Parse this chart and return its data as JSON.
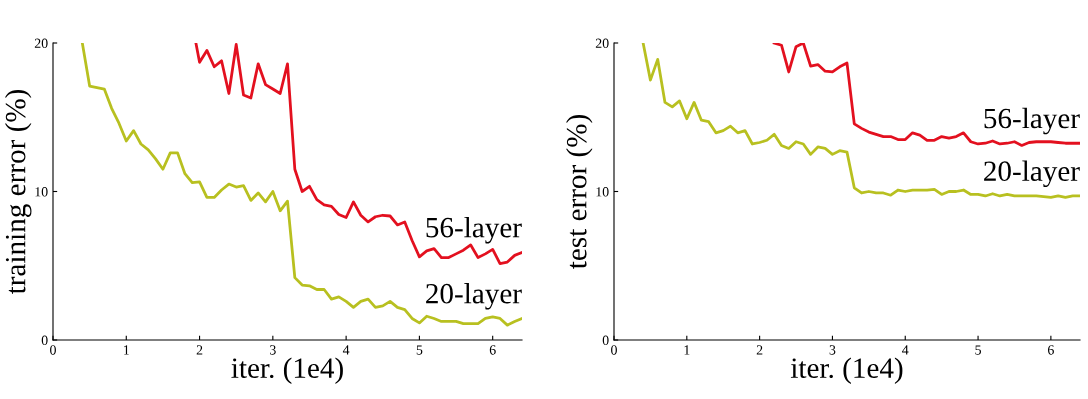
{
  "chart_data": [
    {
      "type": "line",
      "xlabel": "iter. (1e4)",
      "ylabel": "training error (%)",
      "xlim": [
        0,
        6.4
      ],
      "ylim": [
        0,
        20
      ],
      "xticks": [
        0,
        1,
        2,
        3,
        4,
        5,
        6
      ],
      "yticks": [
        0,
        10,
        20
      ],
      "grid": false,
      "legend": false,
      "series": [
        {
          "name": "56-layer",
          "color": "#e3101f",
          "x": [
            1.95,
            2.0,
            2.1,
            2.2,
            2.3,
            2.4,
            2.5,
            2.6,
            2.7,
            2.8,
            2.9,
            3.0,
            3.1,
            3.2,
            3.3,
            3.4,
            3.5,
            3.6,
            3.7,
            3.8,
            3.9,
            4.0,
            4.1,
            4.2,
            4.3,
            4.4,
            4.5,
            4.6,
            4.7,
            4.8,
            4.9,
            5.0,
            5.1,
            5.2,
            5.3,
            5.4,
            5.5,
            5.6,
            5.7,
            5.8,
            5.9,
            6.0,
            6.1,
            6.2,
            6.3,
            6.4
          ],
          "values": [
            20,
            18.7,
            19.5,
            18.4,
            18.8,
            16.6,
            19.9,
            16.5,
            16.3,
            18.6,
            17.2,
            16.9,
            16.6,
            18.6,
            11.5,
            10.0,
            10.35,
            9.45,
            9.1,
            9.0,
            8.45,
            8.25,
            9.3,
            8.4,
            7.95,
            8.3,
            8.4,
            8.35,
            7.75,
            7.95,
            6.7,
            5.6,
            6.0,
            6.15,
            5.55,
            5.55,
            5.8,
            6.05,
            6.4,
            5.55,
            5.8,
            6.1,
            5.15,
            5.25,
            5.7,
            5.9
          ]
        },
        {
          "name": "20-layer",
          "color": "#b8c020",
          "x": [
            0.4,
            0.5,
            0.7,
            0.8,
            0.9,
            1.0,
            1.1,
            1.2,
            1.3,
            1.4,
            1.5,
            1.6,
            1.7,
            1.8,
            1.9,
            2.0,
            2.1,
            2.2,
            2.3,
            2.4,
            2.5,
            2.6,
            2.7,
            2.8,
            2.9,
            3.0,
            3.1,
            3.2,
            3.3,
            3.4,
            3.5,
            3.6,
            3.7,
            3.8,
            3.9,
            4.0,
            4.1,
            4.2,
            4.3,
            4.4,
            4.5,
            4.6,
            4.7,
            4.8,
            4.9,
            5.0,
            5.1,
            5.2,
            5.3,
            5.4,
            5.5,
            5.6,
            5.7,
            5.8,
            5.9,
            6.0,
            6.1,
            6.2,
            6.3,
            6.4
          ],
          "values": [
            20,
            17.1,
            16.9,
            15.6,
            14.6,
            13.4,
            14.1,
            13.2,
            12.8,
            12.2,
            11.5,
            12.6,
            12.6,
            11.2,
            10.6,
            10.65,
            9.6,
            9.6,
            10.1,
            10.5,
            10.3,
            10.4,
            9.4,
            9.9,
            9.3,
            10.0,
            8.7,
            9.35,
            4.2,
            3.7,
            3.65,
            3.4,
            3.4,
            2.75,
            2.9,
            2.6,
            2.2,
            2.6,
            2.75,
            2.2,
            2.3,
            2.6,
            2.2,
            2.05,
            1.45,
            1.15,
            1.6,
            1.45,
            1.25,
            1.25,
            1.25,
            1.1,
            1.1,
            1.1,
            1.45,
            1.55,
            1.45,
            1.0,
            1.25,
            1.45
          ]
        }
      ]
    },
    {
      "type": "line",
      "xlabel": "iter. (1e4)",
      "ylabel": "test error (%)",
      "xlim": [
        0,
        6.4
      ],
      "ylim": [
        0,
        20
      ],
      "xticks": [
        0,
        1,
        2,
        3,
        4,
        5,
        6
      ],
      "yticks": [
        0,
        10,
        20
      ],
      "grid": false,
      "legend": false,
      "series": [
        {
          "name": "56-layer",
          "color": "#e3101f",
          "x": [
            2.2,
            2.3,
            2.4,
            2.5,
            2.6,
            2.7,
            2.8,
            2.9,
            3.0,
            3.1,
            3.2,
            3.3,
            3.4,
            3.5,
            3.6,
            3.7,
            3.8,
            3.9,
            4.0,
            4.1,
            4.2,
            4.3,
            4.4,
            4.5,
            4.6,
            4.7,
            4.8,
            4.9,
            5.0,
            5.1,
            5.2,
            5.3,
            5.4,
            5.5,
            5.6,
            5.7,
            5.8,
            5.9,
            6.0,
            6.1,
            6.2,
            6.3,
            6.4
          ],
          "values": [
            20,
            19.85,
            18.05,
            19.75,
            20,
            18.45,
            18.55,
            18.1,
            18.05,
            18.4,
            18.65,
            14.55,
            14.25,
            14.0,
            13.85,
            13.7,
            13.7,
            13.5,
            13.5,
            13.95,
            13.8,
            13.45,
            13.45,
            13.7,
            13.6,
            13.7,
            13.95,
            13.35,
            13.2,
            13.25,
            13.4,
            13.2,
            13.25,
            13.35,
            13.1,
            13.3,
            13.35,
            13.35,
            13.35,
            13.3,
            13.25,
            13.25,
            13.25
          ]
        },
        {
          "name": "20-layer",
          "color": "#b8c020",
          "x": [
            0.4,
            0.5,
            0.6,
            0.7,
            0.8,
            0.9,
            1.0,
            1.1,
            1.2,
            1.3,
            1.4,
            1.5,
            1.6,
            1.7,
            1.8,
            1.9,
            2.0,
            2.1,
            2.2,
            2.3,
            2.4,
            2.5,
            2.6,
            2.7,
            2.8,
            2.9,
            3.0,
            3.1,
            3.2,
            3.3,
            3.4,
            3.5,
            3.6,
            3.7,
            3.8,
            3.9,
            4.0,
            4.1,
            4.2,
            4.3,
            4.4,
            4.5,
            4.6,
            4.7,
            4.8,
            4.9,
            5.0,
            5.1,
            5.2,
            5.3,
            5.4,
            5.5,
            5.6,
            5.7,
            5.8,
            5.9,
            6.0,
            6.1,
            6.2,
            6.3,
            6.4
          ],
          "values": [
            20,
            17.5,
            18.9,
            16.0,
            15.7,
            16.1,
            14.9,
            16.0,
            14.8,
            14.7,
            13.95,
            14.1,
            14.4,
            13.95,
            14.1,
            13.2,
            13.3,
            13.45,
            13.85,
            13.1,
            12.9,
            13.35,
            13.2,
            12.5,
            13.0,
            12.9,
            12.5,
            12.75,
            12.65,
            10.25,
            9.9,
            10.0,
            9.9,
            9.9,
            9.75,
            10.1,
            10.0,
            10.1,
            10.1,
            10.1,
            10.15,
            9.8,
            10.0,
            10.0,
            10.1,
            9.8,
            9.8,
            9.7,
            9.85,
            9.7,
            9.8,
            9.7,
            9.7,
            9.7,
            9.7,
            9.65,
            9.6,
            9.7,
            9.6,
            9.7,
            9.7
          ]
        }
      ]
    }
  ]
}
